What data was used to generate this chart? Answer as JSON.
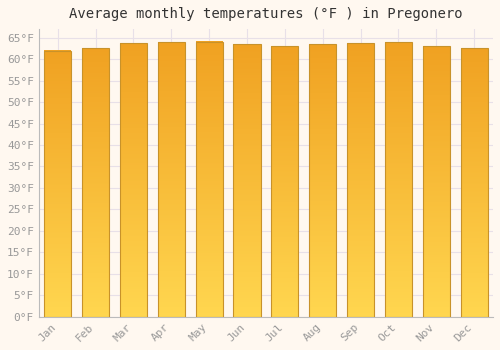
{
  "title": "Average monthly temperatures (°F ) in Pregonero",
  "months": [
    "Jan",
    "Feb",
    "Mar",
    "Apr",
    "May",
    "Jun",
    "Jul",
    "Aug",
    "Sep",
    "Oct",
    "Nov",
    "Dec"
  ],
  "values": [
    62.0,
    62.5,
    63.8,
    64.0,
    64.1,
    63.5,
    63.0,
    63.5,
    63.8,
    64.0,
    63.0,
    62.5
  ],
  "bar_color_top": "#F0A020",
  "bar_color_mid": "#F5B830",
  "bar_color_bottom": "#FFD54F",
  "bar_edge_color": "#C8922A",
  "background_color": "#FFF8F0",
  "grid_color": "#E8E0E8",
  "ytick_labels": [
    "0°F",
    "5°F",
    "10°F",
    "15°F",
    "20°F",
    "25°F",
    "30°F",
    "35°F",
    "40°F",
    "45°F",
    "50°F",
    "55°F",
    "60°F",
    "65°F"
  ],
  "ytick_values": [
    0,
    5,
    10,
    15,
    20,
    25,
    30,
    35,
    40,
    45,
    50,
    55,
    60,
    65
  ],
  "ylim": [
    0,
    67
  ],
  "title_fontsize": 10,
  "tick_fontsize": 8,
  "tick_color": "#999999",
  "font_family": "monospace"
}
